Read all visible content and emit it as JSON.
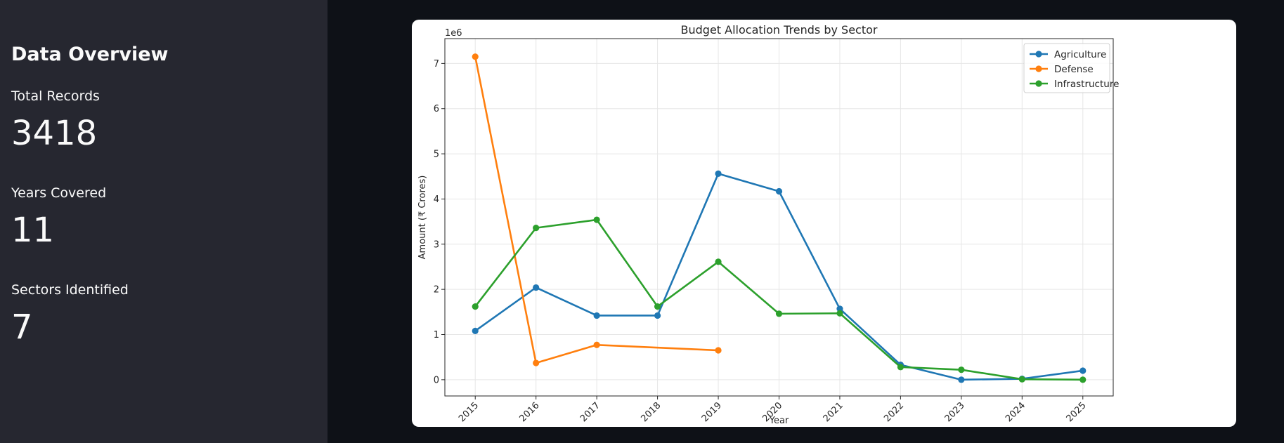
{
  "sidebar": {
    "title": "Data Overview",
    "metrics": [
      {
        "label": "Total Records",
        "value": "3418"
      },
      {
        "label": "Years Covered",
        "value": "11"
      },
      {
        "label": "Sectors Identified",
        "value": "7"
      }
    ]
  },
  "colors": {
    "sidebar_bg": "#262730",
    "main_bg": "#0e1117",
    "Agriculture": "#1f77b4",
    "Defense": "#ff7f0e",
    "Infrastructure": "#2ca02c"
  },
  "chart_data": {
    "type": "line",
    "title": "Budget Allocation Trends by Sector",
    "xlabel": "Year",
    "ylabel": "Amount (₹ Crores)",
    "y_offset_label": "1e6",
    "x": [
      "2015",
      "2016",
      "2017",
      "2018",
      "2019",
      "2020",
      "2021",
      "2022",
      "2023",
      "2024",
      "2025"
    ],
    "xlim": [
      2014.5,
      2025.5
    ],
    "ylim": [
      -0.36,
      7.55
    ],
    "yticks": [
      0,
      1,
      2,
      3,
      4,
      5,
      6,
      7
    ],
    "grid": true,
    "legend_position": "top-right",
    "series": [
      {
        "name": "Agriculture",
        "x": [
          2015,
          2016,
          2017,
          2018,
          2019,
          2020,
          2021,
          2022,
          2023,
          2024,
          2025
        ],
        "values": [
          1.08,
          2.04,
          1.42,
          1.42,
          4.56,
          4.17,
          1.57,
          0.33,
          0.0,
          0.02,
          0.2
        ]
      },
      {
        "name": "Defense",
        "x": [
          2015,
          2016,
          2017,
          2019
        ],
        "values": [
          7.15,
          0.37,
          0.77,
          0.65
        ]
      },
      {
        "name": "Infrastructure",
        "x": [
          2015,
          2016,
          2017,
          2018,
          2019,
          2020,
          2021,
          2022,
          2023,
          2024,
          2025
        ],
        "values": [
          1.62,
          3.36,
          3.54,
          1.62,
          2.61,
          1.46,
          1.47,
          0.28,
          0.22,
          0.01,
          0.0
        ]
      }
    ]
  }
}
